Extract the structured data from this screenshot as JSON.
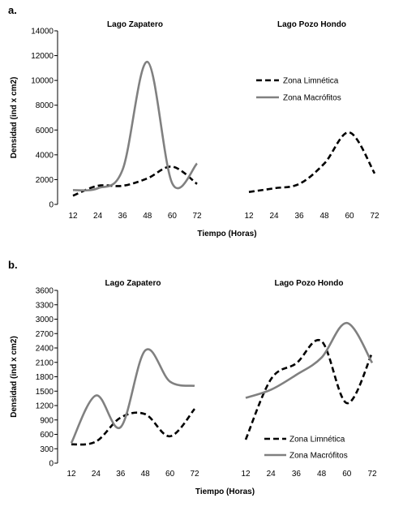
{
  "figure": {
    "panels": [
      "a.",
      "b."
    ]
  },
  "chart_data": [
    {
      "type": "line",
      "panel": "a.",
      "ylabel": "Densidad (ind x cm2)",
      "xlabel": "Tiempo (Horas)",
      "ylim": [
        0,
        14000
      ],
      "yticks": [
        "0",
        "2000",
        "4000",
        "6000",
        "8000",
        "10000",
        "12000",
        "14000"
      ],
      "legend_position": "top-right",
      "subplots": [
        {
          "title": "Lago Zapatero",
          "x": [
            "12",
            "24",
            "36",
            "48",
            "60",
            "72"
          ],
          "series": [
            {
              "name": "Zona Limnética",
              "style": "dashed",
              "color": "#000000",
              "values": [
                700,
                1500,
                1500,
                2100,
                3050,
                1650
              ]
            },
            {
              "name": "Zona Macrófitos",
              "style": "solid",
              "color": "#808080",
              "values": [
                1150,
                1300,
                2800,
                11500,
                1700,
                3300
              ]
            }
          ]
        },
        {
          "title": "Lago Pozo Hondo",
          "x": [
            "12",
            "24",
            "36",
            "48",
            "60",
            "72"
          ],
          "series": [
            {
              "name": "Zona Limnética",
              "style": "dashed",
              "color": "#000000",
              "values": [
                1000,
                1300,
                1650,
                3300,
                5800,
                2500
              ]
            }
          ]
        }
      ]
    },
    {
      "type": "line",
      "panel": "b.",
      "ylabel": "Densidad (ind x cm2)",
      "xlabel": "Tiempo (Horas)",
      "ylim": [
        0,
        3600
      ],
      "yticks": [
        "0",
        "300",
        "600",
        "900",
        "1200",
        "1500",
        "1800",
        "2100",
        "2400",
        "2700",
        "3000",
        "3300",
        "3600"
      ],
      "legend_position": "bottom-right",
      "subplots": [
        {
          "title": "Lago Zapatero",
          "x": [
            "12",
            "24",
            "36",
            "48",
            "60",
            "72"
          ],
          "series": [
            {
              "name": "Zona Limnética",
              "style": "dashed",
              "color": "#000000",
              "values": [
                390,
                450,
                950,
                1020,
                560,
                1130
              ]
            },
            {
              "name": "Zona Macrófitos",
              "style": "solid",
              "color": "#808080",
              "values": [
                420,
                1410,
                750,
                2350,
                1700,
                1610
              ]
            }
          ]
        },
        {
          "title": "Lago Pozo Hondo",
          "x": [
            "12",
            "24",
            "36",
            "48",
            "60",
            "72"
          ],
          "series": [
            {
              "name": "Zona Limnética",
              "style": "dashed",
              "color": "#000000",
              "values": [
                490,
                1750,
                2080,
                2540,
                1250,
                2300
              ]
            },
            {
              "name": "Zona Macrófitos",
              "style": "solid",
              "color": "#808080",
              "values": [
                1360,
                1530,
                1840,
                2200,
                2920,
                2090
              ]
            }
          ]
        }
      ]
    }
  ]
}
